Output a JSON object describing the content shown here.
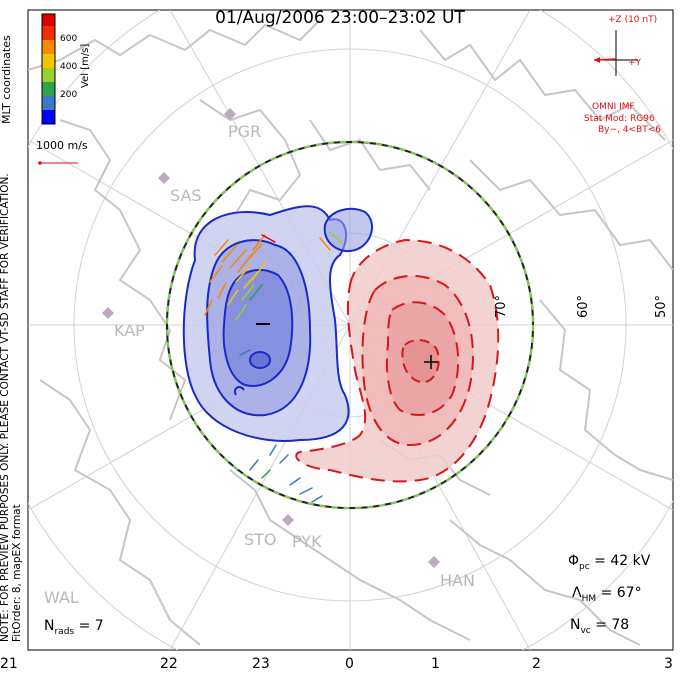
{
  "header": {
    "title": "01/Aug/2006 23:00–23:02 UT"
  },
  "side_note": {
    "line1": "NOTE: FOR PREVIEW PURPOSES ONLY. PLEASE CONTACT VT-SD STAFF FOR VERIFICATION.",
    "line2": "FitOrder: 8, mapEX format"
  },
  "coords_label": "MLT coordinates",
  "color_bar": {
    "label": "Vel [m/s]",
    "ticks": [
      "600",
      "400",
      "200"
    ],
    "colors": [
      "#0000ff",
      "#3a78c8",
      "#2fa24a",
      "#9ad12a",
      "#f5c400",
      "#f58a00",
      "#f03000",
      "#e00000"
    ]
  },
  "scale_vector": {
    "label": "1000 m/s"
  },
  "imf": {
    "axis_z": "+Z (10 nT)",
    "axis_y": "+Y",
    "title": "OMNI IMF",
    "model_line1": "Stat Mod: RG96",
    "model_line2": "By−, 4<BT<6"
  },
  "latitude_labels": [
    "70°",
    "60°",
    "50°"
  ],
  "station_labels": [
    "PGR",
    "SAS",
    "KAP",
    "STO",
    "PYK",
    "HAN",
    "WAL"
  ],
  "potential": {
    "phi": {
      "symbol": "Φ",
      "sub": "pc",
      "eq": "= 42 kV"
    },
    "lambda": {
      "symbol": "Λ",
      "sub": "HM",
      "eq": "= 67°"
    },
    "nvc": {
      "symbol": "N",
      "sub": "vc",
      "eq": "= 78"
    },
    "nrads": {
      "symbol": "N",
      "sub": "rads",
      "eq": "= 7"
    }
  },
  "mlt_axis": {
    "ticks": [
      "21",
      "22",
      "23",
      "0",
      "1",
      "2",
      "3"
    ]
  },
  "colors": {
    "negative_cell": "#1a2ac8",
    "positive_cell": "#d81818",
    "grid": "#cfcfcf",
    "coast": "#c9c9c9"
  }
}
